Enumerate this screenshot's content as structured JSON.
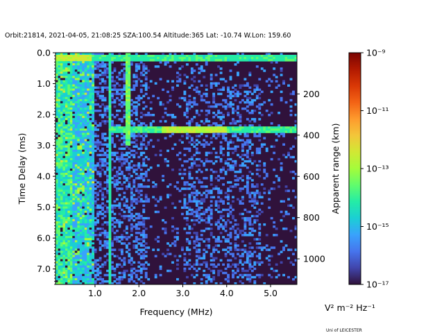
{
  "header": {
    "title": "Orbit:21814, 2021-04-05, 21:08:25 SZA:100.54 Altitude:365 Lat: -10.74 W.Lon: 159.60"
  },
  "footer": {
    "credit": "Uni of LEICESTER"
  },
  "chart_data": {
    "type": "heatmap",
    "xlabel": "Frequency (MHz)",
    "ylabel": "Time Delay (ms)",
    "y2label": "Apparent range (km)",
    "xlim": [
      0.1,
      5.6
    ],
    "ylim": [
      7.5,
      0.0
    ],
    "x_ticks": [
      {
        "value": 1.0,
        "label": "1.0"
      },
      {
        "value": 2.0,
        "label": "2.0"
      },
      {
        "value": 3.0,
        "label": "3.0"
      },
      {
        "value": 4.0,
        "label": "4.0"
      },
      {
        "value": 5.0,
        "label": "5.0"
      }
    ],
    "y_ticks": [
      {
        "value": 0.0,
        "label": "0.0"
      },
      {
        "value": 1.0,
        "label": "1.0"
      },
      {
        "value": 2.0,
        "label": "2.0"
      },
      {
        "value": 3.0,
        "label": "3.0"
      },
      {
        "value": 4.0,
        "label": "4.0"
      },
      {
        "value": 5.0,
        "label": "5.0"
      },
      {
        "value": 6.0,
        "label": "6.0"
      },
      {
        "value": 7.0,
        "label": "7.0"
      }
    ],
    "y2_ticks": [
      {
        "value": 200,
        "label": "200"
      },
      {
        "value": 400,
        "label": "400"
      },
      {
        "value": 600,
        "label": "600"
      },
      {
        "value": 800,
        "label": "800"
      },
      {
        "value": 1000,
        "label": "1000"
      }
    ],
    "colorbar": {
      "label": "V² m⁻² Hz⁻¹",
      "scale": "log",
      "range": [
        1e-17,
        1e-09
      ],
      "ticks": [
        {
          "exp": -17,
          "label": "10⁻¹⁷"
        },
        {
          "exp": -15,
          "label": "10⁻¹⁵"
        },
        {
          "exp": -13,
          "label": "10⁻¹³"
        },
        {
          "exp": -11,
          "label": "10⁻¹¹"
        },
        {
          "exp": -9,
          "label": "10⁻⁹"
        }
      ],
      "colormap": [
        "#30123b",
        "#4145ab",
        "#4675ed",
        "#39a2fc",
        "#1bcfd4",
        "#24eca6",
        "#61fc6c",
        "#a4fc3b",
        "#d1e834",
        "#f3c63a",
        "#fe9b2d",
        "#f36315",
        "#d93806",
        "#b11901",
        "#7a0402"
      ]
    },
    "features": [
      {
        "name": "low-frequency emission",
        "x": [
          0.1,
          1.0
        ],
        "y": [
          0.0,
          7.5
        ]
      },
      {
        "name": "echo at top",
        "x": [
          0.1,
          5.6
        ],
        "y": [
          0.1,
          0.3
        ]
      },
      {
        "name": "echo at 2.5 ms",
        "x": [
          1.3,
          5.6
        ],
        "y": [
          2.4,
          2.6
        ]
      },
      {
        "name": "vertical line",
        "x": [
          1.35,
          1.35
        ],
        "y": [
          0.0,
          7.5
        ]
      },
      {
        "name": "vertical line",
        "x": [
          1.75,
          1.75
        ],
        "y": [
          0.0,
          3.0
        ]
      }
    ]
  }
}
